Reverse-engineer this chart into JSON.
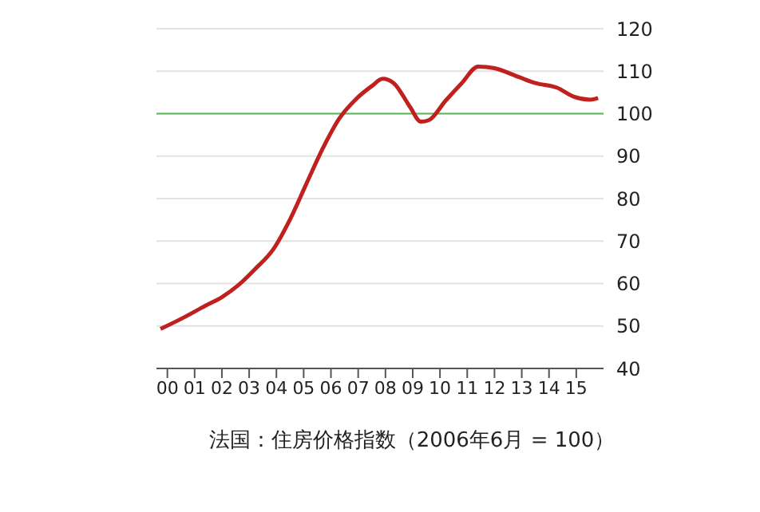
{
  "chart_data": {
    "type": "line",
    "title": "法国：住房价格指数（2006年6月 = 100）",
    "x": [
      1999.75,
      2000.6,
      2001.4,
      2002.0,
      2002.6,
      2003.2,
      2003.9,
      2004.5,
      2005.1,
      2005.7,
      2006.3,
      2006.9,
      2007.5,
      2007.9,
      2008.3,
      2008.9,
      2009.3,
      2009.6,
      2010.2,
      2010.8,
      2011.4,
      2012.0,
      2012.9,
      2013.5,
      2014.3,
      2014.9,
      2015.5,
      2015.8
    ],
    "series": [
      {
        "color": "#c0211f",
        "values": [
          49.3,
          52,
          54.8,
          56.8,
          59.6,
          63.3,
          68.2,
          75.1,
          83.5,
          91.8,
          98.8,
          103.3,
          106.5,
          108.2,
          107.2,
          101.6,
          98.1,
          98.5,
          103,
          107.2,
          111.1,
          110.7,
          108.6,
          107.2,
          106.1,
          104,
          103.3,
          103.7
        ]
      }
    ],
    "xlim": [
      1999.6,
      2016
    ],
    "xticks": [
      {
        "value": 2000,
        "label": "00"
      },
      {
        "value": 2001,
        "label": "01"
      },
      {
        "value": 2002,
        "label": "02"
      },
      {
        "value": 2003,
        "label": "03"
      },
      {
        "value": 2004,
        "label": "04"
      },
      {
        "value": 2005,
        "label": "05"
      },
      {
        "value": 2006,
        "label": "06"
      },
      {
        "value": 2007,
        "label": "07"
      },
      {
        "value": 2008,
        "label": "08"
      },
      {
        "value": 2009,
        "label": "09"
      },
      {
        "value": 2010,
        "label": "10"
      },
      {
        "value": 2011,
        "label": "11"
      },
      {
        "value": 2012,
        "label": "12"
      },
      {
        "value": 2013,
        "label": "13"
      },
      {
        "value": 2014,
        "label": "14"
      },
      {
        "value": 2015,
        "label": "15"
      }
    ],
    "ylim": [
      40,
      120
    ],
    "yticks": [
      40,
      50,
      60,
      70,
      80,
      90,
      100,
      110,
      120
    ],
    "ref_lines": [
      {
        "axis": "y",
        "value": 100,
        "color": "#5cb85c"
      }
    ],
    "grid": "y",
    "legend": false,
    "marker": "none",
    "line_style": "solid"
  }
}
